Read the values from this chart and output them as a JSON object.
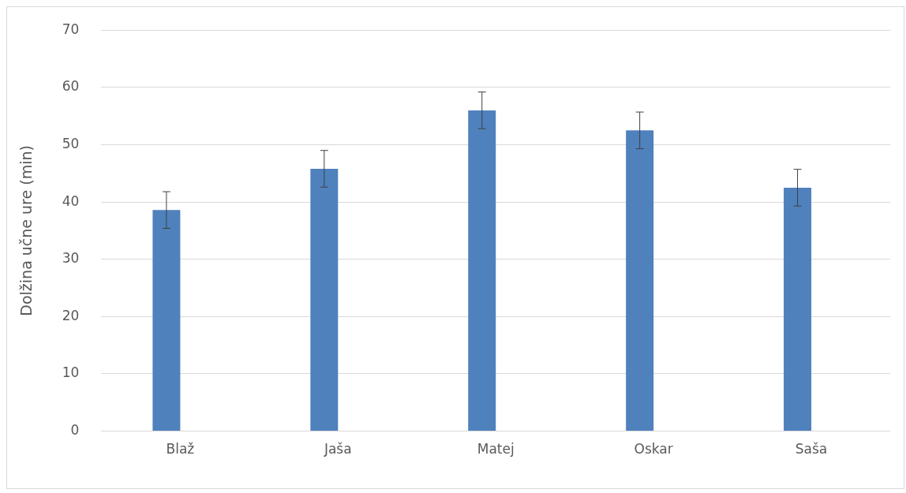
{
  "chart_data": {
    "type": "bar",
    "ylabel": "Dolžina učne ure (min)",
    "categories": [
      "Blaž",
      "Jaša",
      "Matej",
      "Oskar",
      "Saša"
    ],
    "values": [
      38.6,
      45.8,
      56.0,
      52.5,
      42.5
    ],
    "errors": [
      3.2,
      3.2,
      3.2,
      3.2,
      3.2
    ],
    "color": "#4f81bd",
    "ylim": [
      0,
      70
    ],
    "yticks": [
      0,
      10,
      20,
      30,
      40,
      50,
      60,
      70
    ],
    "grid": "y",
    "legend": false
  }
}
